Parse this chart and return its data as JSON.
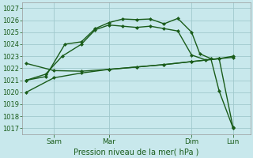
{
  "title": "Pression niveau de la mer( hPa )",
  "bg_color": "#c8e8ec",
  "grid_color": "#a0c8cc",
  "line_color": "#1a5c1a",
  "ylim": [
    1016.5,
    1027.5
  ],
  "yticks": [
    1017,
    1018,
    1019,
    1020,
    1021,
    1022,
    1023,
    1024,
    1025,
    1026,
    1027
  ],
  "xlim": [
    -0.15,
    8.15
  ],
  "xtick_labels": [
    "Sam",
    "Mar",
    "Dim",
    "Lun"
  ],
  "xtick_pos": [
    1.0,
    3.0,
    6.0,
    7.5
  ],
  "vline_pos": [
    1.0,
    3.0,
    6.0,
    7.5
  ],
  "line1_x": [
    0.0,
    0.7,
    1.4,
    2.0,
    2.5,
    3.0,
    3.5,
    4.0,
    4.5,
    5.0,
    5.5,
    6.0,
    6.3,
    6.7,
    7.0,
    7.5
  ],
  "line1_y": [
    1021.0,
    1021.3,
    1024.0,
    1024.2,
    1025.3,
    1025.8,
    1026.1,
    1026.05,
    1026.1,
    1025.7,
    1026.15,
    1025.0,
    1023.2,
    1022.8,
    1020.1,
    1017.05
  ],
  "line2_x": [
    0.0,
    0.7,
    1.3,
    2.0,
    2.5,
    3.0,
    3.5,
    4.0,
    4.5,
    5.0,
    5.5,
    6.0,
    6.5,
    7.0,
    7.5
  ],
  "line2_y": [
    1021.0,
    1021.5,
    1023.0,
    1024.0,
    1025.2,
    1025.6,
    1025.5,
    1025.4,
    1025.5,
    1025.3,
    1025.1,
    1023.1,
    1022.7,
    1022.8,
    1017.1
  ],
  "line3_x": [
    0.0,
    1.0,
    2.0,
    3.0,
    4.0,
    5.0,
    6.0,
    7.0,
    7.5
  ],
  "line3_y": [
    1022.4,
    1021.8,
    1021.75,
    1021.9,
    1022.1,
    1022.3,
    1022.55,
    1022.8,
    1023.0
  ],
  "line4_x": [
    0.0,
    1.0,
    2.0,
    3.0,
    4.0,
    5.0,
    6.0,
    7.0,
    7.5
  ],
  "line4_y": [
    1020.0,
    1021.2,
    1021.6,
    1021.9,
    1022.1,
    1022.3,
    1022.55,
    1022.8,
    1022.9
  ]
}
